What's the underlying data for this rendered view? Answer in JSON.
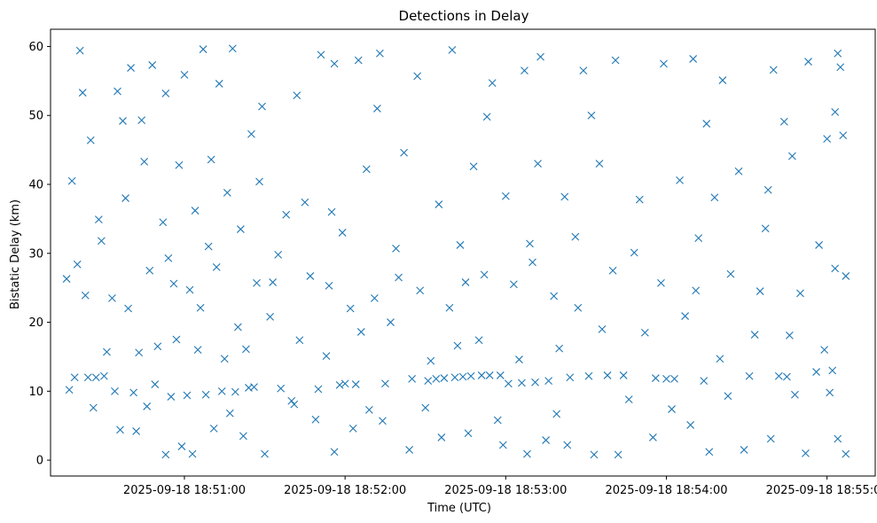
{
  "chart_data": {
    "type": "scatter",
    "title": "Detections in Delay",
    "xlabel": "Time (UTC)",
    "ylabel": "Bistatic Delay (km)",
    "marker": "x",
    "color": "#1f77b4",
    "grid": false,
    "legend": "none",
    "ylim": [
      -2.3,
      62.5
    ],
    "xlim": [
      "2025-09-18 18:50:10",
      "2025-09-18 18:55:18"
    ],
    "x_ticks": [
      "2025-09-18 18:51:00",
      "2025-09-18 18:52:00",
      "2025-09-18 18:53:00",
      "2025-09-18 18:54:00",
      "2025-09-18 18:55:00"
    ],
    "y_ticks": [
      0,
      10,
      20,
      30,
      40,
      50,
      60
    ],
    "points": [
      [
        "2025-09-18 18:50:21",
        59.4
      ],
      [
        "2025-09-18 18:50:22",
        53.3
      ],
      [
        "2025-09-18 18:50:25",
        46.4
      ],
      [
        "2025-09-18 18:50:35",
        53.5
      ],
      [
        "2025-09-18 18:50:40",
        56.9
      ],
      [
        "2025-09-18 18:50:44",
        49.3
      ],
      [
        "2025-09-18 18:50:48",
        57.3
      ],
      [
        "2025-09-18 18:50:53",
        53.2
      ],
      [
        "2025-09-18 18:51:00",
        55.9
      ],
      [
        "2025-09-18 18:51:07",
        59.6
      ],
      [
        "2025-09-18 18:51:13",
        54.6
      ],
      [
        "2025-09-18 18:51:18",
        59.7
      ],
      [
        "2025-09-18 18:51:25",
        47.3
      ],
      [
        "2025-09-18 18:51:42",
        52.9
      ],
      [
        "2025-09-18 18:51:51",
        58.8
      ],
      [
        "2025-09-18 18:51:56",
        57.5
      ],
      [
        "2025-09-18 18:52:05",
        58.0
      ],
      [
        "2025-09-18 18:52:13",
        59.0
      ],
      [
        "2025-09-18 18:52:27",
        55.7
      ],
      [
        "2025-09-18 18:52:40",
        59.5
      ],
      [
        "2025-09-18 18:52:55",
        54.7
      ],
      [
        "2025-09-18 18:53:07",
        56.5
      ],
      [
        "2025-09-18 18:53:13",
        58.5
      ],
      [
        "2025-09-18 18:53:29",
        56.5
      ],
      [
        "2025-09-18 18:53:41",
        58.0
      ],
      [
        "2025-09-18 18:53:59",
        57.5
      ],
      [
        "2025-09-18 18:54:10",
        58.2
      ],
      [
        "2025-09-18 18:54:21",
        55.1
      ],
      [
        "2025-09-18 18:54:40",
        56.6
      ],
      [
        "2025-09-18 18:54:53",
        57.8
      ],
      [
        "2025-09-18 18:55:04",
        59.0
      ],
      [
        "2025-09-18 18:55:05",
        57.0
      ],
      [
        "2025-09-18 18:50:18",
        40.5
      ],
      [
        "2025-09-18 18:50:28",
        34.9
      ],
      [
        "2025-09-18 18:50:38",
        38.0
      ],
      [
        "2025-09-18 18:50:45",
        43.3
      ],
      [
        "2025-09-18 18:50:52",
        34.5
      ],
      [
        "2025-09-18 18:50:58",
        42.8
      ],
      [
        "2025-09-18 18:51:04",
        36.2
      ],
      [
        "2025-09-18 18:51:10",
        43.6
      ],
      [
        "2025-09-18 18:51:16",
        38.8
      ],
      [
        "2025-09-18 18:51:21",
        33.5
      ],
      [
        "2025-09-18 18:51:28",
        40.4
      ],
      [
        "2025-09-18 18:51:38",
        35.6
      ],
      [
        "2025-09-18 18:51:45",
        37.4
      ],
      [
        "2025-09-18 18:51:55",
        36.0
      ],
      [
        "2025-09-18 18:52:08",
        42.2
      ],
      [
        "2025-09-18 18:52:22",
        44.6
      ],
      [
        "2025-09-18 18:52:35",
        37.1
      ],
      [
        "2025-09-18 18:52:48",
        42.6
      ],
      [
        "2025-09-18 18:53:00",
        38.3
      ],
      [
        "2025-09-18 18:53:12",
        43.0
      ],
      [
        "2025-09-18 18:53:22",
        38.2
      ],
      [
        "2025-09-18 18:53:35",
        43.0
      ],
      [
        "2025-09-18 18:53:50",
        37.8
      ],
      [
        "2025-09-18 18:54:05",
        40.6
      ],
      [
        "2025-09-18 18:54:18",
        38.1
      ],
      [
        "2025-09-18 18:54:27",
        41.9
      ],
      [
        "2025-09-18 18:54:38",
        39.2
      ],
      [
        "2025-09-18 18:54:47",
        44.1
      ],
      [
        "2025-09-18 18:55:00",
        46.6
      ],
      [
        "2025-09-18 18:55:06",
        47.1
      ],
      [
        "2025-09-18 18:50:16",
        26.3
      ],
      [
        "2025-09-18 18:50:20",
        28.4
      ],
      [
        "2025-09-18 18:50:23",
        23.9
      ],
      [
        "2025-09-18 18:50:33",
        23.5
      ],
      [
        "2025-09-18 18:50:39",
        22.0
      ],
      [
        "2025-09-18 18:50:47",
        27.5
      ],
      [
        "2025-09-18 18:50:56",
        25.6
      ],
      [
        "2025-09-18 18:51:02",
        24.7
      ],
      [
        "2025-09-18 18:51:06",
        22.1
      ],
      [
        "2025-09-18 18:51:12",
        28.0
      ],
      [
        "2025-09-18 18:51:20",
        19.3
      ],
      [
        "2025-09-18 18:51:27",
        25.7
      ],
      [
        "2025-09-18 18:51:33",
        25.8
      ],
      [
        "2025-09-18 18:51:47",
        26.7
      ],
      [
        "2025-09-18 18:51:54",
        25.3
      ],
      [
        "2025-09-18 18:52:02",
        22.0
      ],
      [
        "2025-09-18 18:52:11",
        23.5
      ],
      [
        "2025-09-18 18:52:20",
        26.5
      ],
      [
        "2025-09-18 18:52:28",
        24.6
      ],
      [
        "2025-09-18 18:52:39",
        22.1
      ],
      [
        "2025-09-18 18:52:45",
        25.8
      ],
      [
        "2025-09-18 18:52:52",
        26.9
      ],
      [
        "2025-09-18 18:53:03",
        25.5
      ],
      [
        "2025-09-18 18:53:10",
        28.7
      ],
      [
        "2025-09-18 18:53:18",
        23.8
      ],
      [
        "2025-09-18 18:53:27",
        22.1
      ],
      [
        "2025-09-18 18:53:40",
        27.5
      ],
      [
        "2025-09-18 18:53:58",
        25.7
      ],
      [
        "2025-09-18 18:54:11",
        24.6
      ],
      [
        "2025-09-18 18:54:24",
        27.0
      ],
      [
        "2025-09-18 18:54:35",
        24.5
      ],
      [
        "2025-09-18 18:54:50",
        24.2
      ],
      [
        "2025-09-18 18:55:03",
        27.8
      ],
      [
        "2025-09-18 18:55:07",
        26.7
      ],
      [
        "2025-09-18 18:50:31",
        15.7
      ],
      [
        "2025-09-18 18:50:43",
        15.6
      ],
      [
        "2025-09-18 18:50:50",
        16.5
      ],
      [
        "2025-09-18 18:50:57",
        17.5
      ],
      [
        "2025-09-18 18:51:05",
        16.0
      ],
      [
        "2025-09-18 18:51:15",
        14.7
      ],
      [
        "2025-09-18 18:51:23",
        16.1
      ],
      [
        "2025-09-18 18:51:32",
        20.8
      ],
      [
        "2025-09-18 18:51:43",
        17.4
      ],
      [
        "2025-09-18 18:51:53",
        15.1
      ],
      [
        "2025-09-18 18:52:06",
        18.6
      ],
      [
        "2025-09-18 18:52:17",
        20.0
      ],
      [
        "2025-09-18 18:52:32",
        14.4
      ],
      [
        "2025-09-18 18:52:42",
        16.6
      ],
      [
        "2025-09-18 18:52:50",
        17.4
      ],
      [
        "2025-09-18 18:53:05",
        14.6
      ],
      [
        "2025-09-18 18:53:20",
        16.2
      ],
      [
        "2025-09-18 18:53:36",
        19.0
      ],
      [
        "2025-09-18 18:53:52",
        18.5
      ],
      [
        "2025-09-18 18:54:07",
        20.9
      ],
      [
        "2025-09-18 18:54:20",
        14.7
      ],
      [
        "2025-09-18 18:54:33",
        18.2
      ],
      [
        "2025-09-18 18:54:46",
        18.1
      ],
      [
        "2025-09-18 18:54:59",
        16.0
      ],
      [
        "2025-09-18 18:50:17",
        10.2
      ],
      [
        "2025-09-18 18:50:19",
        12.0
      ],
      [
        "2025-09-18 18:50:24",
        12.0
      ],
      [
        "2025-09-18 18:50:27",
        12.0
      ],
      [
        "2025-09-18 18:50:30",
        12.2
      ],
      [
        "2025-09-18 18:50:34",
        10.0
      ],
      [
        "2025-09-18 18:50:41",
        9.8
      ],
      [
        "2025-09-18 18:50:49",
        11.0
      ],
      [
        "2025-09-18 18:50:55",
        9.2
      ],
      [
        "2025-09-18 18:51:01",
        9.4
      ],
      [
        "2025-09-18 18:51:08",
        9.5
      ],
      [
        "2025-09-18 18:51:14",
        10.0
      ],
      [
        "2025-09-18 18:51:19",
        9.9
      ],
      [
        "2025-09-18 18:51:24",
        10.5
      ],
      [
        "2025-09-18 18:51:26",
        10.6
      ],
      [
        "2025-09-18 18:51:36",
        10.4
      ],
      [
        "2025-09-18 18:51:50",
        10.3
      ],
      [
        "2025-09-18 18:51:58",
        10.9
      ],
      [
        "2025-09-18 18:52:00",
        11.1
      ],
      [
        "2025-09-18 18:52:04",
        11.0
      ],
      [
        "2025-09-18 18:52:15",
        11.1
      ],
      [
        "2025-09-18 18:52:25",
        11.8
      ],
      [
        "2025-09-18 18:52:31",
        11.5
      ],
      [
        "2025-09-18 18:52:34",
        11.8
      ],
      [
        "2025-09-18 18:52:37",
        11.9
      ],
      [
        "2025-09-18 18:52:41",
        12.0
      ],
      [
        "2025-09-18 18:52:44",
        12.1
      ],
      [
        "2025-09-18 18:52:47",
        12.2
      ],
      [
        "2025-09-18 18:52:51",
        12.3
      ],
      [
        "2025-09-18 18:52:54",
        12.3
      ],
      [
        "2025-09-18 18:52:58",
        12.3
      ],
      [
        "2025-09-18 18:53:01",
        11.1
      ],
      [
        "2025-09-18 18:53:06",
        11.2
      ],
      [
        "2025-09-18 18:53:11",
        11.3
      ],
      [
        "2025-09-18 18:53:16",
        11.5
      ],
      [
        "2025-09-18 18:53:24",
        12.0
      ],
      [
        "2025-09-18 18:53:31",
        12.2
      ],
      [
        "2025-09-18 18:53:38",
        12.3
      ],
      [
        "2025-09-18 18:53:44",
        12.3
      ],
      [
        "2025-09-18 18:53:56",
        11.9
      ],
      [
        "2025-09-18 18:54:00",
        11.8
      ],
      [
        "2025-09-18 18:54:03",
        11.8
      ],
      [
        "2025-09-18 18:54:14",
        11.5
      ],
      [
        "2025-09-18 18:54:31",
        12.2
      ],
      [
        "2025-09-18 18:54:42",
        12.2
      ],
      [
        "2025-09-18 18:54:45",
        12.1
      ],
      [
        "2025-09-18 18:54:56",
        12.8
      ],
      [
        "2025-09-18 18:55:02",
        13.0
      ],
      [
        "2025-09-18 18:50:26",
        7.6
      ],
      [
        "2025-09-18 18:50:36",
        4.4
      ],
      [
        "2025-09-18 18:50:42",
        4.2
      ],
      [
        "2025-09-18 18:50:53",
        0.8
      ],
      [
        "2025-09-18 18:50:59",
        2.0
      ],
      [
        "2025-09-18 18:51:03",
        0.9
      ],
      [
        "2025-09-18 18:51:11",
        4.6
      ],
      [
        "2025-09-18 18:51:22",
        3.5
      ],
      [
        "2025-09-18 18:51:30",
        0.9
      ],
      [
        "2025-09-18 18:51:41",
        8.1
      ],
      [
        "2025-09-18 18:51:49",
        5.9
      ],
      [
        "2025-09-18 18:51:56",
        1.2
      ],
      [
        "2025-09-18 18:52:03",
        4.6
      ],
      [
        "2025-09-18 18:52:14",
        5.7
      ],
      [
        "2025-09-18 18:52:24",
        1.5
      ],
      [
        "2025-09-18 18:52:36",
        3.3
      ],
      [
        "2025-09-18 18:52:46",
        3.9
      ],
      [
        "2025-09-18 18:52:59",
        2.2
      ],
      [
        "2025-09-18 18:53:08",
        0.9
      ],
      [
        "2025-09-18 18:53:15",
        2.9
      ],
      [
        "2025-09-18 18:53:23",
        2.2
      ],
      [
        "2025-09-18 18:53:33",
        0.8
      ],
      [
        "2025-09-18 18:53:42",
        0.8
      ],
      [
        "2025-09-18 18:53:55",
        3.3
      ],
      [
        "2025-09-18 18:54:09",
        5.1
      ],
      [
        "2025-09-18 18:54:16",
        1.2
      ],
      [
        "2025-09-18 18:54:29",
        1.5
      ],
      [
        "2025-09-18 18:54:39",
        3.1
      ],
      [
        "2025-09-18 18:54:52",
        1.0
      ],
      [
        "2025-09-18 18:55:04",
        3.1
      ],
      [
        "2025-09-18 18:55:07",
        0.9
      ],
      [
        "2025-09-18 18:50:46",
        7.8
      ],
      [
        "2025-09-18 18:51:17",
        6.8
      ],
      [
        "2025-09-18 18:51:40",
        8.6
      ],
      [
        "2025-09-18 18:52:09",
        7.3
      ],
      [
        "2025-09-18 18:52:30",
        7.6
      ],
      [
        "2025-09-18 18:52:57",
        5.8
      ],
      [
        "2025-09-18 18:53:19",
        6.7
      ],
      [
        "2025-09-18 18:53:46",
        8.8
      ],
      [
        "2025-09-18 18:54:02",
        7.4
      ],
      [
        "2025-09-18 18:54:23",
        9.3
      ],
      [
        "2025-09-18 18:54:48",
        9.5
      ],
      [
        "2025-09-18 18:55:01",
        9.8
      ],
      [
        "2025-09-18 18:50:29",
        31.8
      ],
      [
        "2025-09-18 18:50:54",
        29.3
      ],
      [
        "2025-09-18 18:51:09",
        31.0
      ],
      [
        "2025-09-18 18:51:35",
        29.8
      ],
      [
        "2025-09-18 18:51:59",
        33.0
      ],
      [
        "2025-09-18 18:52:19",
        30.7
      ],
      [
        "2025-09-18 18:52:43",
        31.2
      ],
      [
        "2025-09-18 18:53:09",
        31.4
      ],
      [
        "2025-09-18 18:53:26",
        32.4
      ],
      [
        "2025-09-18 18:53:48",
        30.1
      ],
      [
        "2025-09-18 18:54:12",
        32.2
      ],
      [
        "2025-09-18 18:54:37",
        33.6
      ],
      [
        "2025-09-18 18:54:57",
        31.2
      ],
      [
        "2025-09-18 18:50:37",
        49.2
      ],
      [
        "2025-09-18 18:51:29",
        51.3
      ],
      [
        "2025-09-18 18:52:12",
        51.0
      ],
      [
        "2025-09-18 18:52:53",
        49.8
      ],
      [
        "2025-09-18 18:53:32",
        50.0
      ],
      [
        "2025-09-18 18:54:15",
        48.8
      ],
      [
        "2025-09-18 18:54:44",
        49.1
      ],
      [
        "2025-09-18 18:55:03",
        50.5
      ]
    ]
  }
}
